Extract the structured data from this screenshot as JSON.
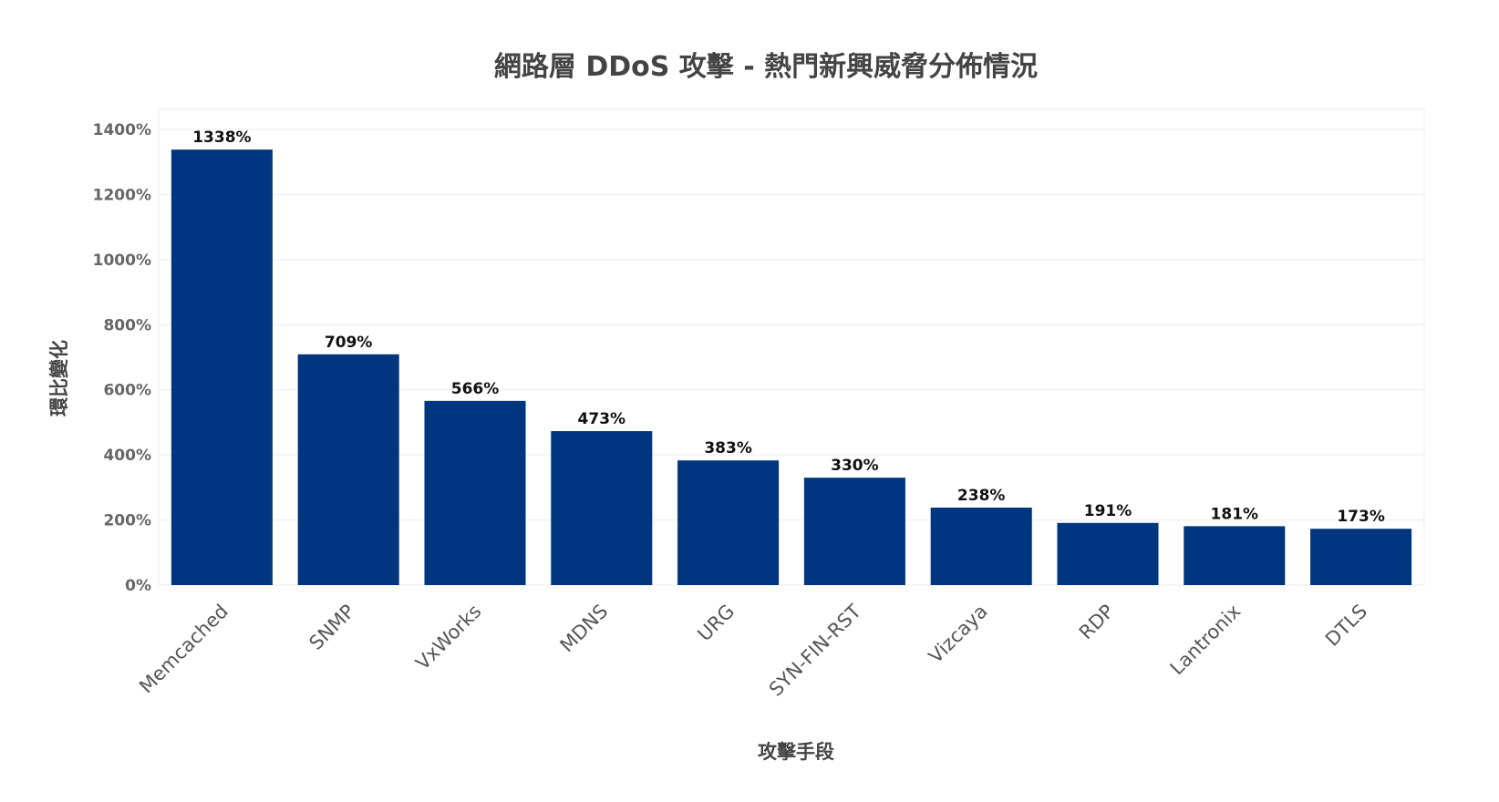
{
  "chart_data": {
    "type": "bar",
    "title": "網路層 DDoS 攻擊 - 熱門新興威脅分佈情況",
    "xlabel": "攻擊手段",
    "ylabel": "環比變化",
    "categories": [
      "Memcached",
      "SNMP",
      "VxWorks",
      "MDNS",
      "URG",
      "SYN-FIN-RST",
      "Vizcaya",
      "RDP",
      "Lantronix",
      "DTLS"
    ],
    "values": [
      1338,
      709,
      566,
      473,
      383,
      330,
      238,
      191,
      181,
      173
    ],
    "data_labels": [
      "1338%",
      "709%",
      "566%",
      "473%",
      "383%",
      "330%",
      "238%",
      "191%",
      "181%",
      "173%"
    ],
    "ylim": [
      0,
      1400
    ],
    "yticks": [
      0,
      200,
      400,
      600,
      800,
      1000,
      1200,
      1400
    ],
    "ytick_labels": [
      "0%",
      "200%",
      "400%",
      "600%",
      "800%",
      "1000%",
      "1200%",
      "1400%"
    ],
    "grid": true,
    "bar_color": "#00357f"
  }
}
